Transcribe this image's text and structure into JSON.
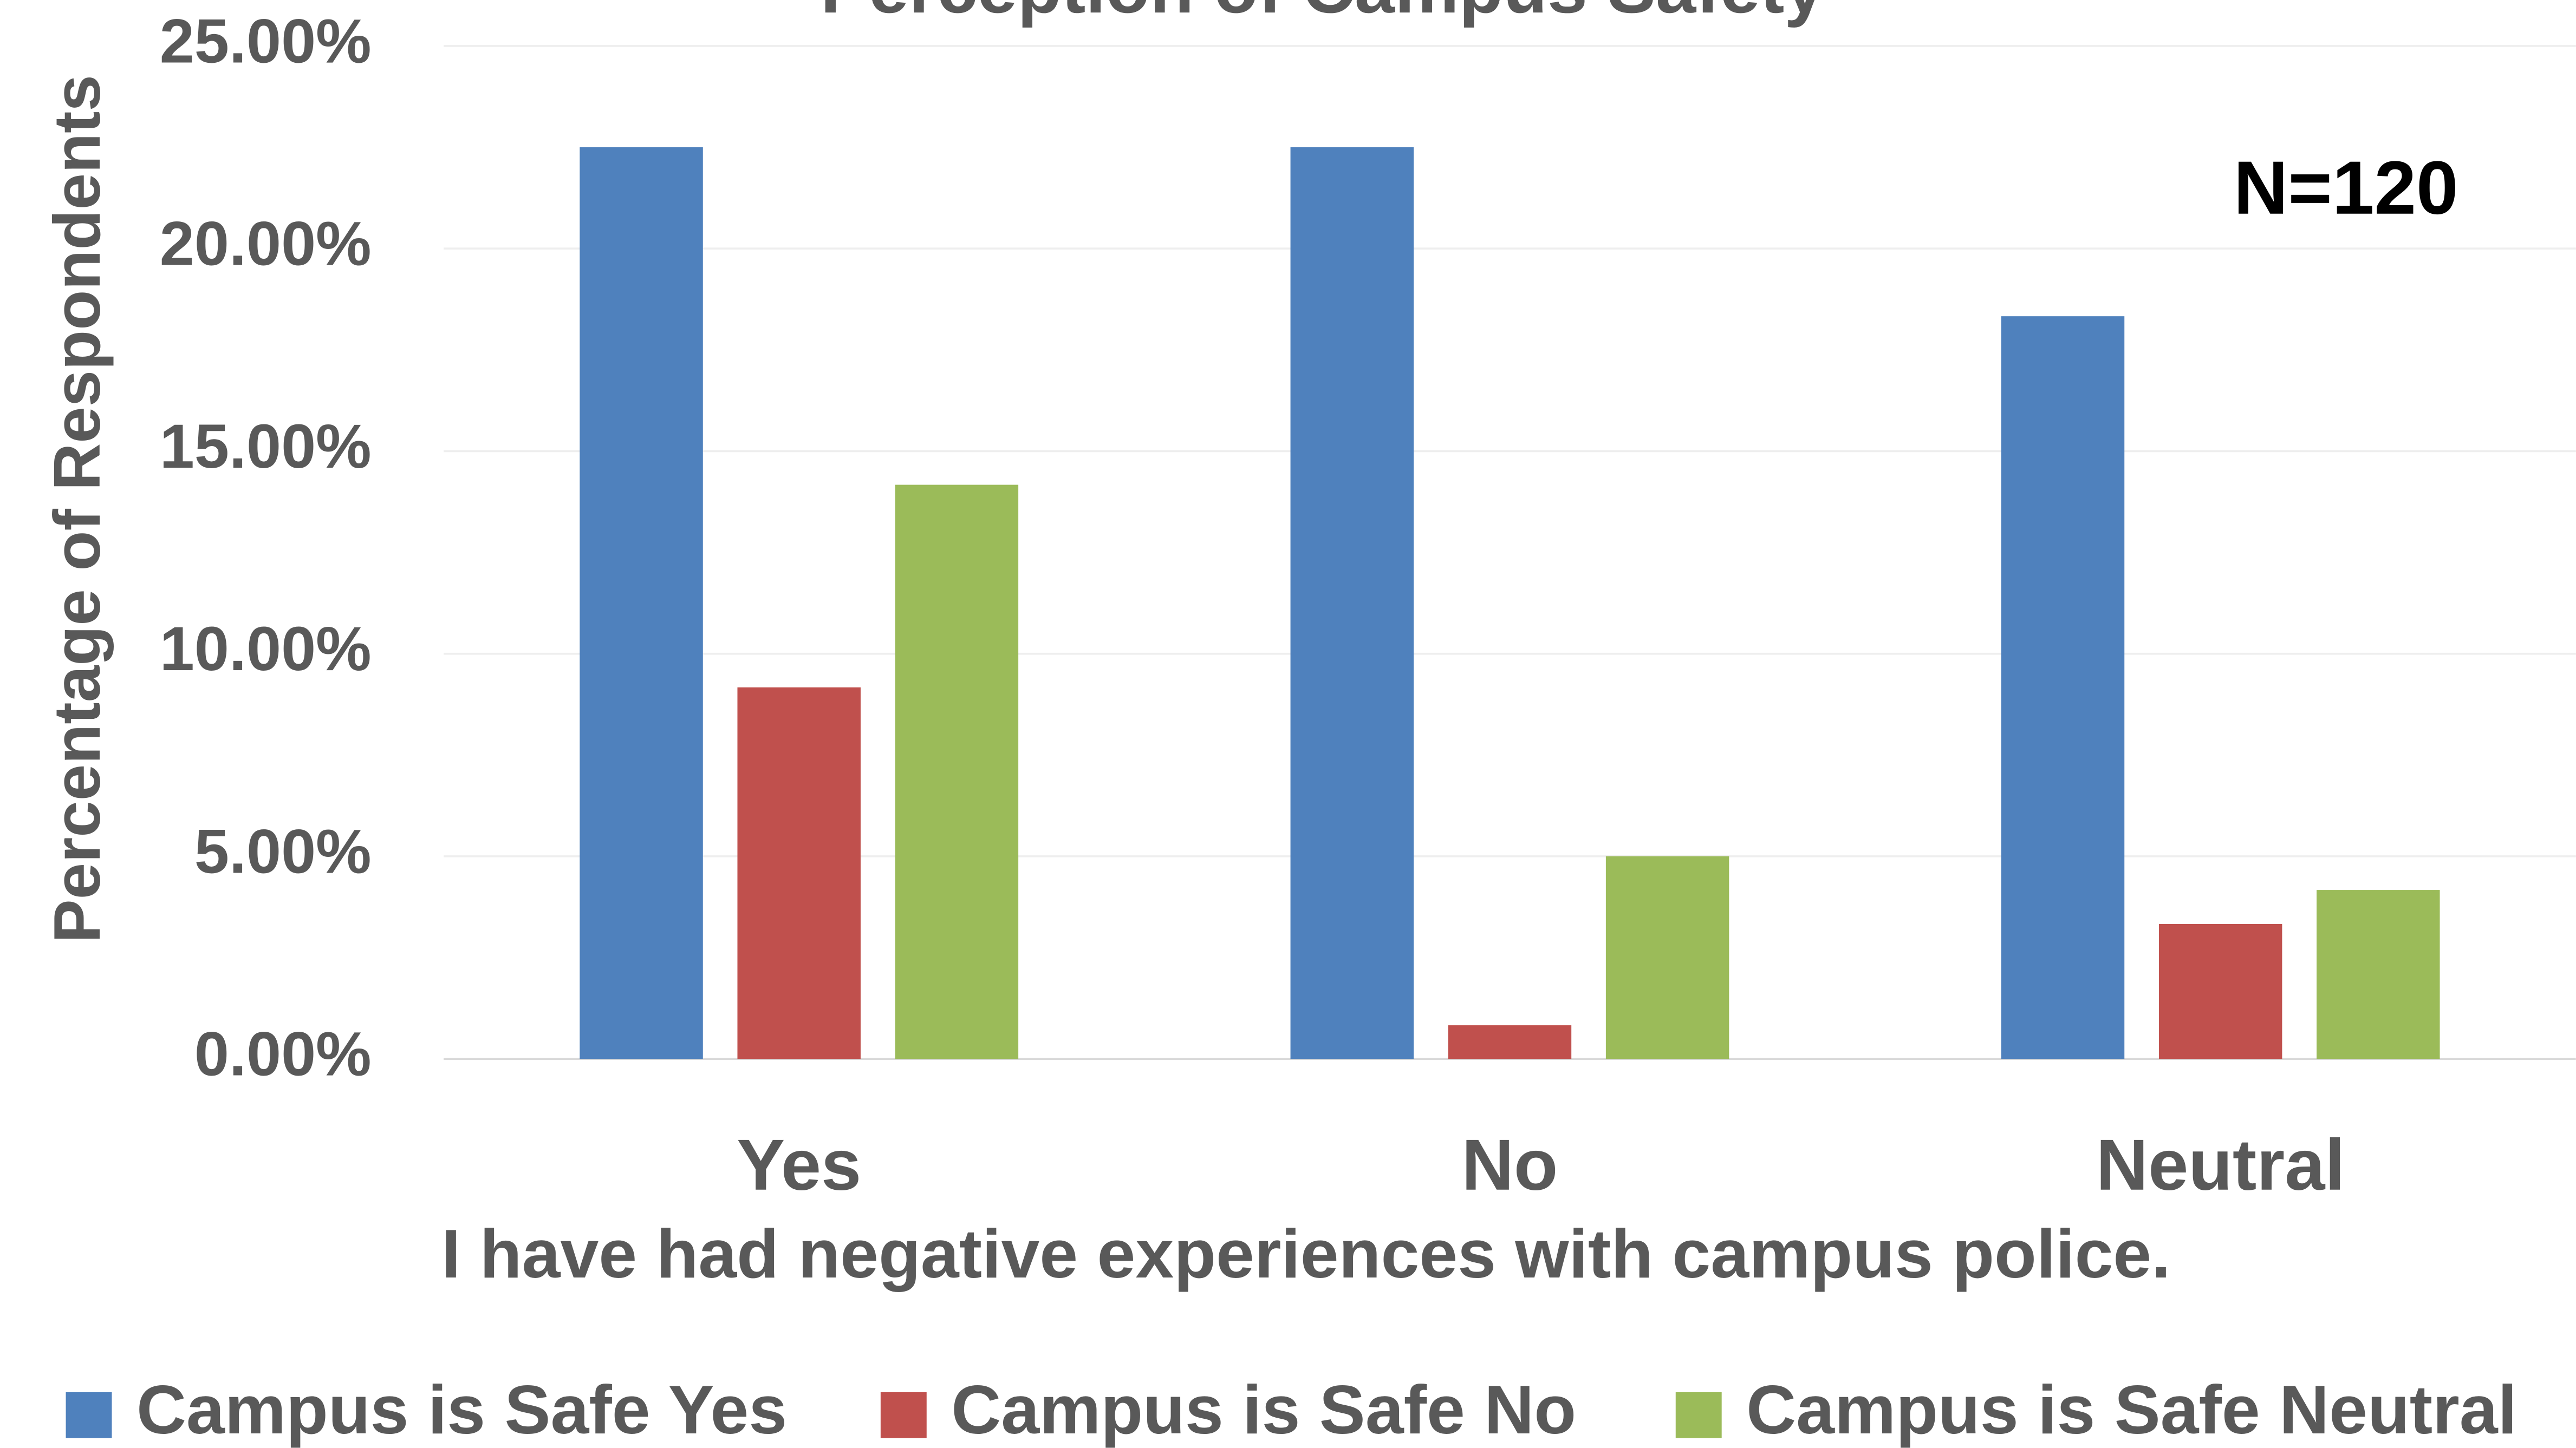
{
  "chart_data": {
    "type": "bar",
    "title": "Perception of Campus Safety",
    "annotation": "N=120",
    "x_label": "I have had negative experiences with campus police.",
    "y_label": "Percentage of Respondents",
    "categories": [
      "Yes",
      "No",
      "Neutral"
    ],
    "series": [
      {
        "name": "Campus is Safe Yes",
        "color": "#4f81bd",
        "values": [
          22.5,
          22.5,
          18.33
        ]
      },
      {
        "name": "Campus is Safe No",
        "color": "#c0504d",
        "values": [
          9.17,
          0.83,
          3.33
        ]
      },
      {
        "name": "Campus is Safe Neutral",
        "color": "#9bbb59",
        "values": [
          14.17,
          5.0,
          4.17
        ]
      }
    ],
    "ylim": [
      0,
      25
    ],
    "yticks": [
      {
        "value": 0,
        "label": "0.00%"
      },
      {
        "value": 5,
        "label": "5.00%"
      },
      {
        "value": 10,
        "label": "10.00%"
      },
      {
        "value": 15,
        "label": "15.00%"
      },
      {
        "value": 20,
        "label": "20.00%"
      },
      {
        "value": 25,
        "label": "25.00%"
      }
    ],
    "grid": true,
    "legend": "bottom"
  }
}
